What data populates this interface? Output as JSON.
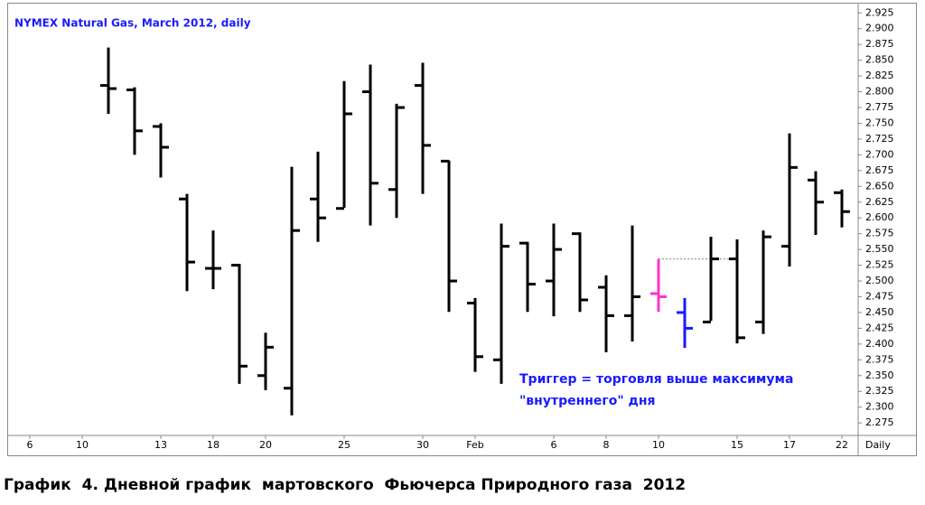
{
  "chart_data": {
    "type": "ohlc",
    "title": "NYMEX Natural Gas, March 2012, daily",
    "xlabel": "Daily",
    "categories": [
      "6",
      null,
      "10",
      null,
      null,
      "13",
      null,
      "18",
      null,
      "20",
      null,
      null,
      "25",
      null,
      null,
      "30",
      null,
      "Feb",
      null,
      null,
      "6",
      null,
      "8",
      null,
      "10",
      null,
      null,
      "15",
      null,
      "17",
      null,
      "22"
    ],
    "open": [
      null,
      null,
      null,
      2.81,
      2.803,
      2.745,
      2.63,
      2.52,
      2.525,
      2.35,
      2.33,
      2.63,
      2.615,
      2.8,
      2.645,
      2.81,
      2.69,
      2.465,
      2.375,
      2.56,
      2.5,
      2.575,
      2.49,
      2.445,
      2.48,
      2.45,
      2.435,
      2.535,
      2.435,
      2.555,
      2.66,
      2.64
    ],
    "high": [
      null,
      null,
      null,
      2.87,
      2.807,
      2.75,
      2.638,
      2.58,
      2.527,
      2.418,
      2.681,
      2.705,
      2.817,
      2.843,
      2.781,
      2.846,
      2.691,
      2.473,
      2.591,
      2.562,
      2.591,
      2.577,
      2.509,
      2.588,
      2.535,
      2.473,
      2.57,
      2.566,
      2.58,
      2.734,
      2.674,
      2.645
    ],
    "low": [
      null,
      null,
      null,
      2.765,
      2.7,
      2.664,
      2.484,
      2.487,
      2.337,
      2.327,
      2.287,
      2.562,
      2.616,
      2.588,
      2.6,
      2.638,
      2.451,
      2.356,
      2.337,
      2.451,
      2.444,
      2.451,
      2.387,
      2.404,
      2.451,
      2.394,
      2.437,
      2.401,
      2.416,
      2.523,
      2.573,
      2.585
    ],
    "close": [
      null,
      null,
      null,
      2.805,
      2.738,
      2.712,
      2.53,
      2.52,
      2.365,
      2.395,
      2.58,
      2.6,
      2.765,
      2.655,
      2.775,
      2.715,
      2.5,
      2.38,
      2.555,
      2.495,
      2.55,
      2.47,
      2.445,
      2.475,
      2.475,
      2.425,
      2.535,
      2.41,
      2.57,
      2.68,
      2.625,
      2.61
    ],
    "colors": [
      null,
      null,
      null,
      "#000000",
      "#000000",
      "#000000",
      "#000000",
      "#000000",
      "#000000",
      "#000000",
      "#000000",
      "#000000",
      "#000000",
      "#000000",
      "#000000",
      "#000000",
      "#000000",
      "#000000",
      "#000000",
      "#000000",
      "#000000",
      "#000000",
      "#000000",
      "#000000",
      "#ff33cc",
      "#1a1aff",
      "#000000",
      "#000000",
      "#000000",
      "#000000",
      "#000000",
      "#000000"
    ],
    "reference_line": 2.535,
    "annotation": [
      "Триггер = торговля выше максимума",
      "\"внутреннего\" дня"
    ],
    "ylim": [
      2.258,
      2.934
    ],
    "yticks": [
      2.275,
      {
        "value": 2.3,
        "label": "2.300"
      },
      2.325,
      {
        "value": 2.35,
        "label": "2.350"
      },
      2.375,
      {
        "value": 2.4,
        "label": "2.400"
      },
      2.425,
      {
        "value": 2.45,
        "label": "2.450"
      },
      2.475,
      {
        "value": 2.5,
        "label": "2.500"
      },
      2.525,
      {
        "value": 2.55,
        "label": "2.550"
      },
      2.575,
      {
        "value": 2.6,
        "label": "2.600"
      },
      2.625,
      {
        "value": 2.65,
        "label": "2.650"
      },
      2.675,
      {
        "value": 2.7,
        "label": "2.700"
      },
      2.725,
      {
        "value": 2.75,
        "label": "2.750"
      },
      2.775,
      {
        "value": 2.8,
        "label": "2.800"
      },
      2.825,
      {
        "value": 2.85,
        "label": "2.850"
      },
      2.875,
      {
        "value": 2.9,
        "label": "2.900"
      },
      2.925
    ]
  },
  "caption": "График  4. Дневной график  мартовского  Фьючерса Природного газа  2012"
}
